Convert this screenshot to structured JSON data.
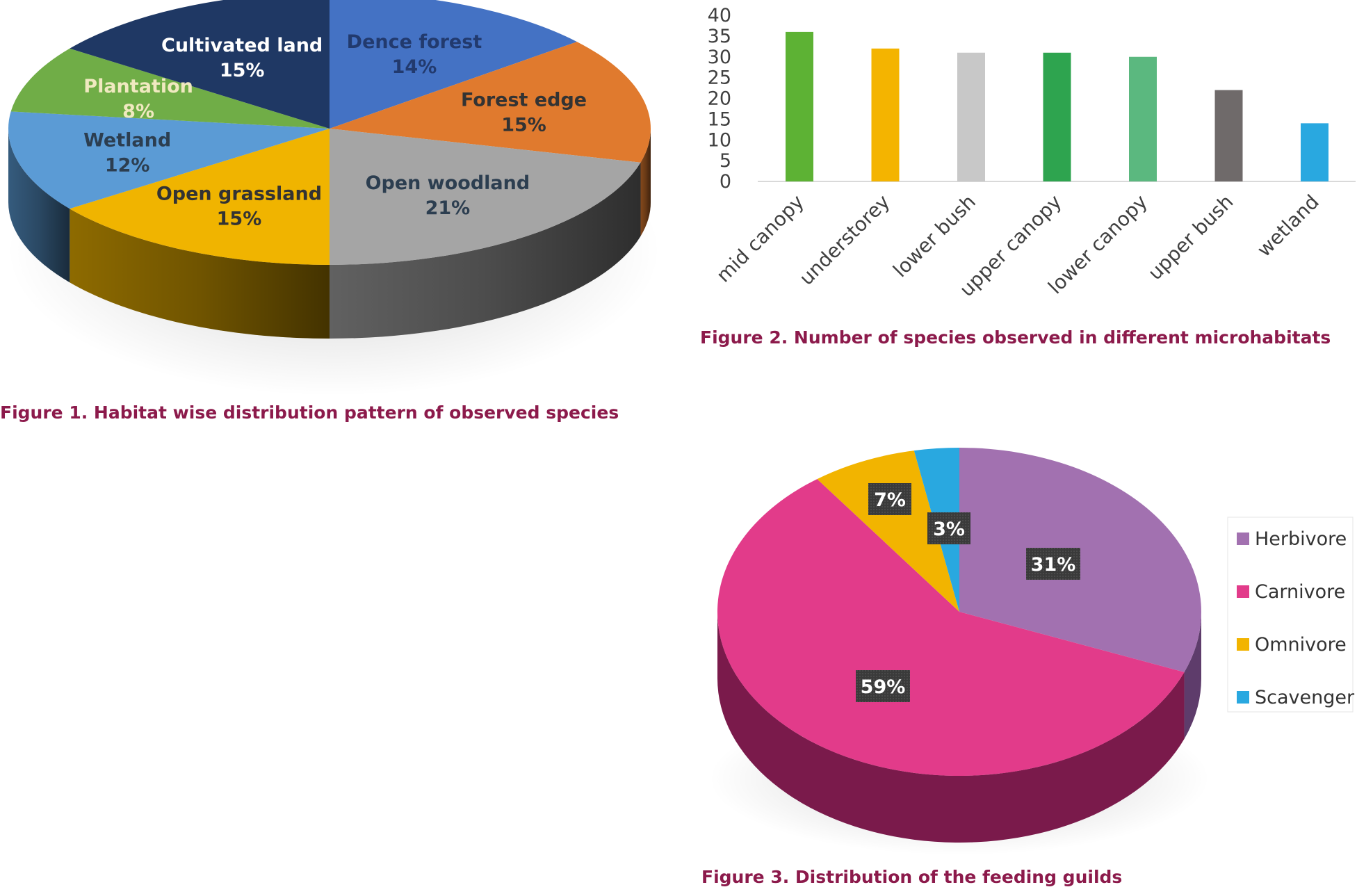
{
  "chart_data": [
    {
      "type": "pie",
      "title": "Figure 1. Habitat wise distribution pattern of observed species",
      "slices": [
        {
          "label": "Dence forest",
          "value": 14,
          "display": "14%",
          "color": "#4472c4",
          "label_color": "#223a6e"
        },
        {
          "label": "Forest edge",
          "value": 15,
          "display": "15%",
          "color": "#e07a2e",
          "label_color": "#333333"
        },
        {
          "label": "Open woodland",
          "value": 21,
          "display": "21%",
          "color": "#a5a5a5",
          "label_color": "#2c3e50"
        },
        {
          "label": "Open grassland",
          "value": 15,
          "display": "15%",
          "color": "#f0b400",
          "label_color": "#333333"
        },
        {
          "label": "Wetland",
          "value": 12,
          "display": "12%",
          "color": "#5b9bd5",
          "label_color": "#2c3e50"
        },
        {
          "label": "Plantation",
          "value": 8,
          "display": "8%",
          "color": "#70ad47",
          "label_color": "#f0e9c0"
        },
        {
          "label": "Cultivated land",
          "value": 15,
          "display": "15%",
          "color": "#1f3864",
          "label_color": "#ffffff"
        }
      ]
    },
    {
      "type": "bar",
      "title": "Figure 2. Number of species observed in different microhabitats",
      "categories": [
        "mid canopy",
        "understorey",
        "lower bush",
        "upper canopy",
        "lower canopy",
        "upper bush",
        "wetland"
      ],
      "values": [
        36,
        32,
        31,
        31,
        30,
        22,
        14
      ],
      "colors": [
        "#5db234",
        "#f4b400",
        "#c8c8c8",
        "#2ea44f",
        "#5bb87f",
        "#6f6a6a",
        "#29a8e0"
      ],
      "yticks": [
        0,
        5,
        10,
        15,
        20,
        25,
        30,
        35,
        40
      ],
      "ylim": [
        0,
        40
      ],
      "xlabel": "",
      "ylabel": "",
      "grid": false
    },
    {
      "type": "pie",
      "title": "Figure 3. Distribution of the feeding guilds",
      "legend_position": "right",
      "slices": [
        {
          "label": "Herbivore",
          "value": 31,
          "display": "31%",
          "color": "#a271b0",
          "dark": "#5e3c6b"
        },
        {
          "label": "Carnivore",
          "value": 59,
          "display": "59%",
          "color": "#e23b8a",
          "dark": "#7a1a4b"
        },
        {
          "label": "Omnivore",
          "value": 7,
          "display": "7%",
          "color": "#f2b400",
          "dark": "#8a6500"
        },
        {
          "label": "Scavenger",
          "value": 3,
          "display": "3%",
          "color": "#29a8e0",
          "dark": "#156088"
        }
      ]
    }
  ]
}
